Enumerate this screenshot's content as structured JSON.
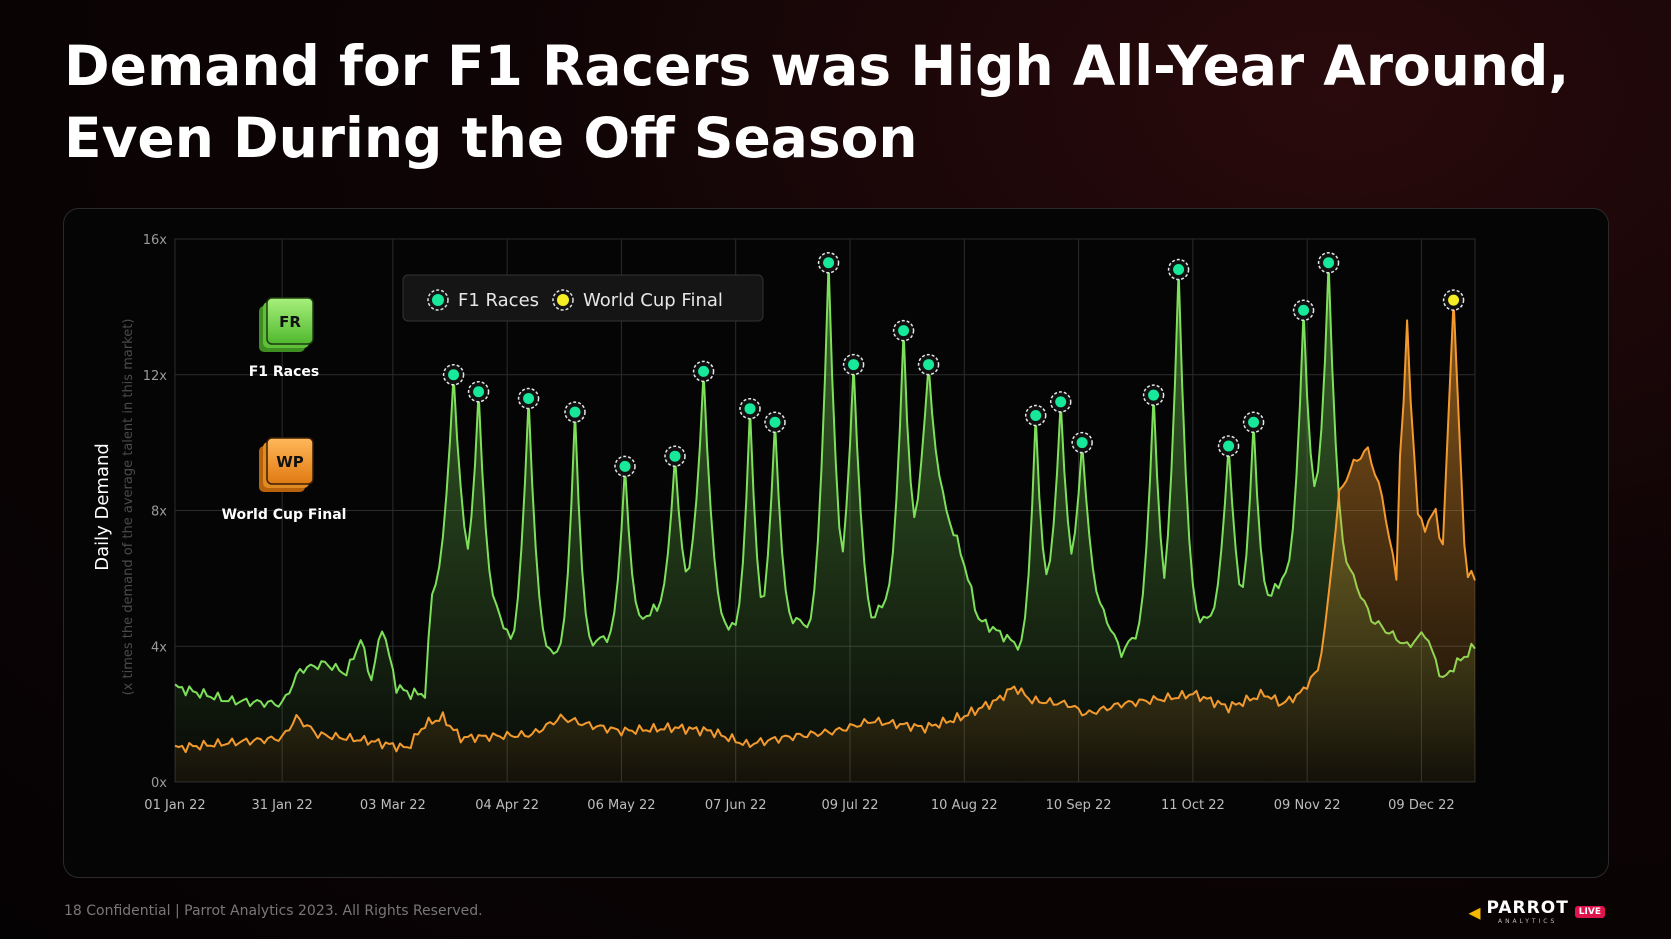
{
  "title_line1": "Demand for F1 Racers was High All-Year Around,",
  "title_line2": "Even During the Off Season",
  "footer": {
    "text": "18  Confidential  |  Parrot Analytics 2023. All Rights Reserved.",
    "logo_text": "PARROT",
    "logo_sub": "ANALYTICS",
    "live_badge": "LIVE"
  },
  "colors": {
    "f1": "#7ee05a",
    "wcf": "#f39a2e",
    "marker_f1": "#17e89a",
    "marker_wcf": "#f6ee24",
    "grid": "#2c2c2c"
  },
  "chart_data": {
    "type": "area",
    "ylabel": "Daily Demand",
    "ylabel_sub": "(x times the demand of the average talent in this market)",
    "ylim": [
      0,
      16
    ],
    "yticks": [
      0,
      4,
      8,
      12,
      16
    ],
    "ytick_labels": [
      "0x",
      "4x",
      "8x",
      "12x",
      "16x"
    ],
    "x_range_days": [
      0,
      364
    ],
    "xticks": [
      0,
      30,
      61,
      93,
      125,
      157,
      189,
      221,
      253,
      285,
      317,
      349
    ],
    "xtick_labels": [
      "01 Jan 22",
      "31 Jan 22",
      "03 Mar 22",
      "04 Apr 22",
      "06 May 22",
      "07 Jun 22",
      "09 Jul 22",
      "10 Aug 22",
      "10 Sep 22",
      "11 Oct 22",
      "09 Nov 22",
      "09 Dec 22"
    ],
    "legend": [
      "F1 Races",
      "World Cup Final"
    ],
    "side_labels": [
      {
        "badge": "FR",
        "name": "F1 Races"
      },
      {
        "badge": "WP",
        "name": "World Cup Final"
      }
    ],
    "series": [
      {
        "name": "F1 Races",
        "base_points": [
          [
            0,
            2.8
          ],
          [
            15,
            2.4
          ],
          [
            30,
            2.3
          ],
          [
            35,
            3.3
          ],
          [
            42,
            3.5
          ],
          [
            48,
            3.2
          ],
          [
            52,
            4.2
          ],
          [
            55,
            3.0
          ],
          [
            58,
            4.6
          ],
          [
            62,
            2.8
          ],
          [
            66,
            2.6
          ],
          [
            70,
            2.6
          ],
          [
            72,
            5.6
          ],
          [
            76,
            6.0
          ],
          [
            80,
            6.4
          ],
          [
            90,
            5.2
          ],
          [
            95,
            3.8
          ],
          [
            110,
            3.9
          ],
          [
            125,
            4.4
          ],
          [
            140,
            5.5
          ],
          [
            145,
            5.8
          ],
          [
            155,
            4.6
          ],
          [
            160,
            4.2
          ],
          [
            168,
            5.0
          ],
          [
            178,
            4.6
          ],
          [
            185,
            5.4
          ],
          [
            195,
            4.7
          ],
          [
            200,
            5.6
          ],
          [
            205,
            6.4
          ],
          [
            210,
            7.8
          ],
          [
            215,
            8.2
          ],
          [
            220,
            6.8
          ],
          [
            225,
            4.8
          ],
          [
            235,
            4.1
          ],
          [
            240,
            3.8
          ],
          [
            245,
            5.8
          ],
          [
            255,
            6.2
          ],
          [
            265,
            3.8
          ],
          [
            275,
            5.2
          ],
          [
            280,
            5.0
          ],
          [
            290,
            4.8
          ],
          [
            295,
            5.8
          ],
          [
            300,
            4.8
          ],
          [
            305,
            5.2
          ],
          [
            310,
            6.0
          ],
          [
            315,
            6.8
          ],
          [
            320,
            8.2
          ],
          [
            325,
            7.4
          ],
          [
            330,
            6.0
          ],
          [
            335,
            4.8
          ],
          [
            345,
            4.0
          ],
          [
            350,
            4.4
          ],
          [
            355,
            3.0
          ],
          [
            358,
            3.4
          ],
          [
            364,
            4.0
          ]
        ],
        "peaks": [
          [
            78,
            12.0,
            6
          ],
          [
            85,
            11.5,
            5
          ],
          [
            99,
            11.3,
            6
          ],
          [
            112,
            10.9,
            5
          ],
          [
            126,
            9.3,
            5
          ],
          [
            140,
            9.6,
            5
          ],
          [
            148,
            12.1,
            6
          ],
          [
            161,
            11.0,
            5
          ],
          [
            168,
            10.6,
            5
          ],
          [
            183,
            15.3,
            6
          ],
          [
            190,
            12.3,
            6
          ],
          [
            204,
            13.3,
            5
          ],
          [
            211,
            12.3,
            6
          ],
          [
            241,
            10.8,
            5
          ],
          [
            248,
            11.2,
            5
          ],
          [
            254,
            10.0,
            5
          ],
          [
            274,
            11.4,
            5
          ],
          [
            281,
            15.1,
            6
          ],
          [
            295,
            9.9,
            5
          ],
          [
            302,
            10.6,
            5
          ],
          [
            316,
            13.9,
            5
          ],
          [
            323,
            15.3,
            5
          ]
        ],
        "markers": [
          [
            78,
            12.0
          ],
          [
            85,
            11.5
          ],
          [
            99,
            11.3
          ],
          [
            112,
            10.9
          ],
          [
            126,
            9.3
          ],
          [
            140,
            9.6
          ],
          [
            148,
            12.1
          ],
          [
            161,
            11.0
          ],
          [
            168,
            10.6
          ],
          [
            183,
            15.3
          ],
          [
            190,
            12.3
          ],
          [
            204,
            13.3
          ],
          [
            211,
            12.3
          ],
          [
            241,
            10.8
          ],
          [
            248,
            11.2
          ],
          [
            254,
            10.0
          ],
          [
            274,
            11.4
          ],
          [
            281,
            15.1
          ],
          [
            295,
            9.9
          ],
          [
            302,
            10.6
          ],
          [
            316,
            13.9
          ],
          [
            323,
            15.3
          ]
        ]
      },
      {
        "name": "World Cup Final",
        "base_points": [
          [
            0,
            1.0
          ],
          [
            30,
            1.3
          ],
          [
            34,
            1.9
          ],
          [
            40,
            1.4
          ],
          [
            55,
            1.2
          ],
          [
            65,
            1.0
          ],
          [
            70,
            1.7
          ],
          [
            75,
            1.9
          ],
          [
            80,
            1.3
          ],
          [
            100,
            1.4
          ],
          [
            108,
            1.9
          ],
          [
            115,
            1.7
          ],
          [
            125,
            1.5
          ],
          [
            140,
            1.6
          ],
          [
            150,
            1.5
          ],
          [
            160,
            1.1
          ],
          [
            170,
            1.3
          ],
          [
            185,
            1.5
          ],
          [
            195,
            1.8
          ],
          [
            210,
            1.6
          ],
          [
            220,
            1.9
          ],
          [
            230,
            2.4
          ],
          [
            235,
            2.8
          ],
          [
            240,
            2.4
          ],
          [
            250,
            2.3
          ],
          [
            255,
            2.0
          ],
          [
            265,
            2.3
          ],
          [
            280,
            2.5
          ],
          [
            285,
            2.6
          ],
          [
            295,
            2.2
          ],
          [
            305,
            2.6
          ],
          [
            310,
            2.3
          ],
          [
            315,
            2.6
          ],
          [
            320,
            3.3
          ],
          [
            322,
            4.5
          ],
          [
            324,
            6.5
          ],
          [
            326,
            8.5
          ],
          [
            330,
            9.4
          ],
          [
            334,
            9.8
          ],
          [
            338,
            8.4
          ],
          [
            342,
            6.0
          ],
          [
            345,
            8.4
          ],
          [
            350,
            7.5
          ],
          [
            353,
            8.0
          ],
          [
            356,
            6.0
          ],
          [
            358,
            5.3
          ],
          [
            361,
            6.2
          ],
          [
            364,
            6.0
          ]
        ],
        "peaks": [
          [
            226,
            2.2,
            2
          ],
          [
            344,
            4.0,
            1.5
          ],
          [
            347,
            5.0,
            1.2
          ],
          [
            357,
            7.0,
            1.8
          ]
        ],
        "markers": [
          [
            358,
            14.2
          ]
        ]
      }
    ]
  }
}
